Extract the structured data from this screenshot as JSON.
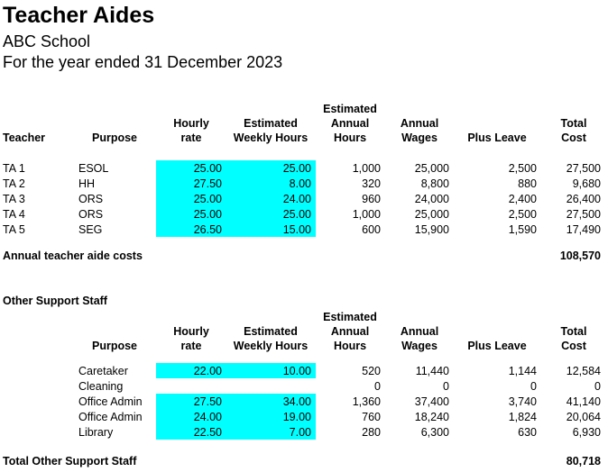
{
  "report": {
    "title": "Teacher Aides",
    "school": "ABC School",
    "period": "For the year ended 31 December 2023"
  },
  "headers": {
    "teacher": "Teacher",
    "purpose": "Purpose",
    "hourly_rate": [
      "Hourly",
      "rate"
    ],
    "weekly_hours": [
      "Estimated",
      "Weekly Hours"
    ],
    "annual_hours": [
      "Estimated",
      "Annual",
      "Hours"
    ],
    "annual_wages": [
      "Annual",
      "Wages"
    ],
    "plus_leave": "Plus Leave",
    "total_cost": [
      "Total",
      "Cost"
    ]
  },
  "teacher_aides": {
    "rows": [
      {
        "teacher": "TA 1",
        "purpose": "ESOL",
        "rate": "25.00",
        "weekly": "25.00",
        "annual_hours": "1,000",
        "wages": "25,000",
        "leave": "2,500",
        "total": "27,500"
      },
      {
        "teacher": "TA 2",
        "purpose": "HH",
        "rate": "27.50",
        "weekly": "8.00",
        "annual_hours": "320",
        "wages": "8,800",
        "leave": "880",
        "total": "9,680"
      },
      {
        "teacher": "TA 3",
        "purpose": "ORS",
        "rate": "25.00",
        "weekly": "24.00",
        "annual_hours": "960",
        "wages": "24,000",
        "leave": "2,400",
        "total": "26,400"
      },
      {
        "teacher": "TA 4",
        "purpose": "ORS",
        "rate": "25.00",
        "weekly": "25.00",
        "annual_hours": "1,000",
        "wages": "25,000",
        "leave": "2,500",
        "total": "27,500"
      },
      {
        "teacher": "TA 5",
        "purpose": "SEG",
        "rate": "26.50",
        "weekly": "15.00",
        "annual_hours": "600",
        "wages": "15,900",
        "leave": "1,590",
        "total": "17,490"
      }
    ],
    "total_label": "Annual teacher aide costs",
    "total_value": "108,570"
  },
  "support_staff": {
    "section_title": "Other Support Staff",
    "rows": [
      {
        "purpose": "Caretaker",
        "rate": "22.00",
        "weekly": "10.00",
        "annual_hours": "520",
        "wages": "11,440",
        "leave": "1,144",
        "total": "12,584"
      },
      {
        "purpose": "Cleaning",
        "rate": "",
        "weekly": "",
        "annual_hours": "0",
        "wages": "0",
        "leave": "0",
        "total": "0"
      },
      {
        "purpose": "Office Admin",
        "rate": "27.50",
        "weekly": "34.00",
        "annual_hours": "1,360",
        "wages": "37,400",
        "leave": "3,740",
        "total": "41,140"
      },
      {
        "purpose": "Office Admin",
        "rate": "24.00",
        "weekly": "19.00",
        "annual_hours": "760",
        "wages": "18,240",
        "leave": "1,824",
        "total": "20,064"
      },
      {
        "purpose": "Library",
        "rate": "22.50",
        "weekly": "7.00",
        "annual_hours": "280",
        "wages": "6,300",
        "leave": "630",
        "total": "6,930"
      }
    ],
    "total_label": "Total Other Support Staff",
    "total_value": "80,718"
  },
  "colors": {
    "highlight": "#00ffff"
  }
}
